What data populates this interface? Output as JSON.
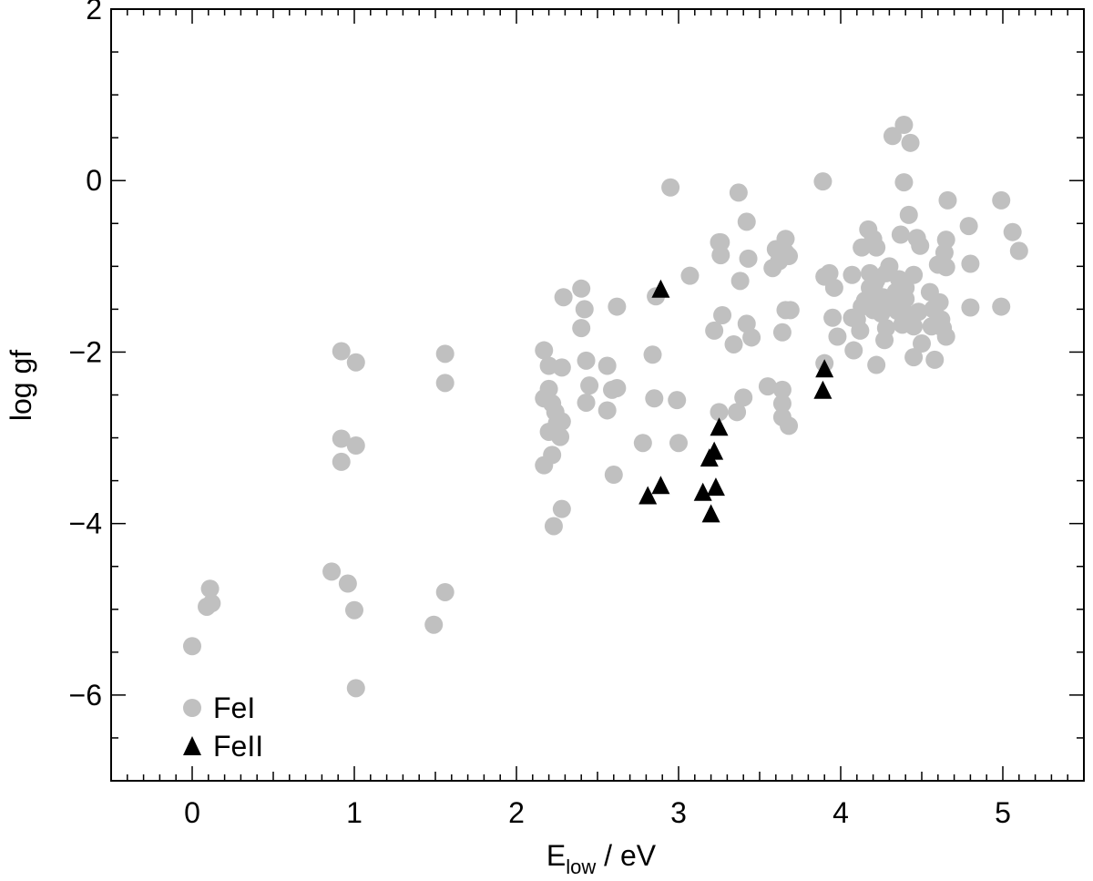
{
  "chart_data": {
    "type": "scatter",
    "title": "",
    "xlabel_main": "E",
    "xlabel_sub": "low",
    "xlabel_rest": " / eV",
    "ylabel": "log gf",
    "xlim": [
      -0.5,
      5.5
    ],
    "ylim": [
      -7,
      2
    ],
    "x_ticks": [
      0,
      1,
      2,
      3,
      4,
      5
    ],
    "y_ticks": [
      2,
      0,
      -2,
      -4,
      -6
    ],
    "x_tick_labels": [
      "0",
      "1",
      "2",
      "3",
      "4",
      "5"
    ],
    "y_tick_labels": [
      "2",
      "0",
      "−2",
      "−4",
      "−6"
    ],
    "grid": false,
    "legend_position": "bottom-left",
    "series": [
      {
        "name": "FeI",
        "marker": "circle",
        "color": "#c0c0c0",
        "points": [
          [
            0.0,
            -5.43
          ],
          [
            0.09,
            -4.97
          ],
          [
            0.11,
            -4.76
          ],
          [
            0.12,
            -4.93
          ],
          [
            0.86,
            -4.56
          ],
          [
            0.92,
            -1.99
          ],
          [
            0.92,
            -3.01
          ],
          [
            0.92,
            -3.28
          ],
          [
            0.96,
            -4.7
          ],
          [
            1.0,
            -5.01
          ],
          [
            1.01,
            -2.12
          ],
          [
            1.01,
            -3.09
          ],
          [
            1.01,
            -5.92
          ],
          [
            1.49,
            -5.18
          ],
          [
            1.56,
            -2.02
          ],
          [
            1.56,
            -2.36
          ],
          [
            1.56,
            -4.8
          ],
          [
            2.17,
            -1.98
          ],
          [
            2.17,
            -2.54
          ],
          [
            2.17,
            -3.32
          ],
          [
            2.2,
            -2.16
          ],
          [
            2.2,
            -2.43
          ],
          [
            2.2,
            -2.93
          ],
          [
            2.22,
            -2.6
          ],
          [
            2.22,
            -3.2
          ],
          [
            2.23,
            -4.03
          ],
          [
            2.24,
            -2.7
          ],
          [
            2.25,
            -2.83
          ],
          [
            2.27,
            -2.99
          ],
          [
            2.28,
            -2.18
          ],
          [
            2.28,
            -3.83
          ],
          [
            2.29,
            -1.36
          ],
          [
            2.28,
            -2.81
          ],
          [
            2.4,
            -1.26
          ],
          [
            2.4,
            -1.72
          ],
          [
            2.42,
            -1.5
          ],
          [
            2.43,
            -2.1
          ],
          [
            2.43,
            -2.59
          ],
          [
            2.45,
            -2.39
          ],
          [
            2.56,
            -2.68
          ],
          [
            2.56,
            -2.16
          ],
          [
            2.59,
            -2.44
          ],
          [
            2.6,
            -3.43
          ],
          [
            2.62,
            -1.47
          ],
          [
            2.62,
            -2.42
          ],
          [
            2.78,
            -3.06
          ],
          [
            2.84,
            -2.03
          ],
          [
            2.85,
            -2.54
          ],
          [
            2.86,
            -1.35
          ],
          [
            2.95,
            -0.08
          ],
          [
            2.99,
            -2.56
          ],
          [
            3.0,
            -3.06
          ],
          [
            3.07,
            -1.11
          ],
          [
            3.25,
            -0.72
          ],
          [
            3.26,
            -0.72
          ],
          [
            3.26,
            -0.87
          ],
          [
            3.25,
            -2.7
          ],
          [
            3.27,
            -1.57
          ],
          [
            3.22,
            -1.75
          ],
          [
            3.34,
            -1.91
          ],
          [
            3.36,
            -2.7
          ],
          [
            3.37,
            -0.14
          ],
          [
            3.38,
            -1.17
          ],
          [
            3.4,
            -2.53
          ],
          [
            3.42,
            -0.48
          ],
          [
            3.42,
            -1.67
          ],
          [
            3.43,
            -0.91
          ],
          [
            3.45,
            -1.83
          ],
          [
            3.55,
            -2.4
          ],
          [
            3.58,
            -1.02
          ],
          [
            3.6,
            -0.8
          ],
          [
            3.62,
            -0.94
          ],
          [
            3.64,
            -1.77
          ],
          [
            3.64,
            -2.44
          ],
          [
            3.64,
            -2.6
          ],
          [
            3.64,
            -2.76
          ],
          [
            3.66,
            -0.68
          ],
          [
            3.66,
            -0.84
          ],
          [
            3.66,
            -1.51
          ],
          [
            3.68,
            -2.86
          ],
          [
            3.69,
            -1.51
          ],
          [
            3.68,
            -0.88
          ],
          [
            3.89,
            -0.01
          ],
          [
            3.9,
            -1.12
          ],
          [
            3.9,
            -2.13
          ],
          [
            3.93,
            -1.08
          ],
          [
            3.95,
            -1.6
          ],
          [
            3.96,
            -1.25
          ],
          [
            3.98,
            -1.82
          ],
          [
            4.07,
            -1.6
          ],
          [
            4.07,
            -1.1
          ],
          [
            4.08,
            -1.98
          ],
          [
            4.1,
            -1.62
          ],
          [
            4.12,
            -1.75
          ],
          [
            4.13,
            -0.78
          ],
          [
            4.13,
            -1.47
          ],
          [
            4.15,
            -1.4
          ],
          [
            4.17,
            -0.57
          ],
          [
            4.18,
            -1.25
          ],
          [
            4.18,
            -1.08
          ],
          [
            4.2,
            -0.68
          ],
          [
            4.2,
            -1.51
          ],
          [
            4.21,
            -1.2
          ],
          [
            4.21,
            -1.4
          ],
          [
            4.22,
            -0.78
          ],
          [
            4.22,
            -1.16
          ],
          [
            4.22,
            -2.15
          ],
          [
            4.25,
            -1.55
          ],
          [
            4.26,
            -1.36
          ],
          [
            4.27,
            -1.86
          ],
          [
            4.28,
            -1.72
          ],
          [
            4.28,
            -1.08
          ],
          [
            4.3,
            -1.4
          ],
          [
            4.3,
            -1.0
          ],
          [
            4.32,
            0.52
          ],
          [
            4.34,
            -1.3
          ],
          [
            4.35,
            -1.52
          ],
          [
            4.36,
            -1.15
          ],
          [
            4.37,
            -0.63
          ],
          [
            4.38,
            -1.68
          ],
          [
            4.39,
            0.65
          ],
          [
            4.39,
            -0.02
          ],
          [
            4.4,
            -1.25
          ],
          [
            4.4,
            -1.38
          ],
          [
            4.41,
            -1.56
          ],
          [
            4.42,
            -0.4
          ],
          [
            4.43,
            0.44
          ],
          [
            4.45,
            -1.1
          ],
          [
            4.45,
            -1.7
          ],
          [
            4.45,
            -2.06
          ],
          [
            4.47,
            -0.67
          ],
          [
            4.48,
            -1.53
          ],
          [
            4.49,
            -0.76
          ],
          [
            4.5,
            -1.9
          ],
          [
            4.55,
            -1.3
          ],
          [
            4.56,
            -1.7
          ],
          [
            4.57,
            -1.5
          ],
          [
            4.58,
            -2.09
          ],
          [
            4.6,
            -0.98
          ],
          [
            4.61,
            -1.42
          ],
          [
            4.62,
            -1.62
          ],
          [
            4.63,
            -1.72
          ],
          [
            4.64,
            -0.84
          ],
          [
            4.65,
            -0.69
          ],
          [
            4.65,
            -1.82
          ],
          [
            4.65,
            -1.01
          ],
          [
            4.66,
            -0.23
          ],
          [
            4.79,
            -0.53
          ],
          [
            4.8,
            -0.97
          ],
          [
            4.8,
            -1.48
          ],
          [
            4.99,
            -0.23
          ],
          [
            4.99,
            -1.47
          ],
          [
            5.06,
            -0.6
          ],
          [
            5.1,
            -0.82
          ]
        ]
      },
      {
        "name": "FeII",
        "marker": "triangle",
        "color": "#000000",
        "points": [
          [
            2.81,
            -3.68
          ],
          [
            2.89,
            -1.27
          ],
          [
            2.89,
            -3.56
          ],
          [
            3.15,
            -3.64
          ],
          [
            3.19,
            -3.24
          ],
          [
            3.2,
            -3.89
          ],
          [
            3.22,
            -3.16
          ],
          [
            3.23,
            -3.58
          ],
          [
            3.25,
            -2.88
          ],
          [
            3.89,
            -2.45
          ],
          [
            3.9,
            -2.2
          ]
        ]
      }
    ]
  }
}
